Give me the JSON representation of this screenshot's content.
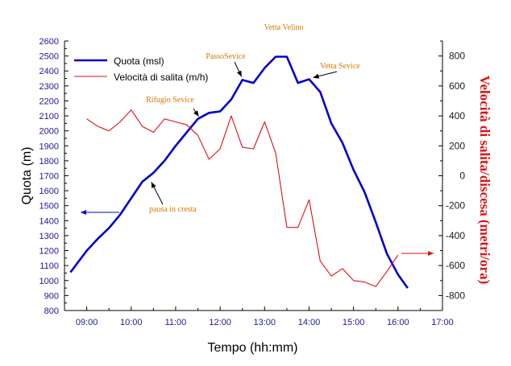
{
  "chart_data": {
    "type": "line",
    "x_axis": {
      "label": "Tempo (hh:mm)",
      "range": [
        "08:30",
        "17:00"
      ],
      "ticks": [
        "09:00",
        "10:00",
        "11:00",
        "12:00",
        "13:00",
        "14:00",
        "15:00",
        "16:00",
        "17:00"
      ]
    },
    "y_left": {
      "label": "Quota (m)",
      "range": [
        800,
        2600
      ],
      "ticks": [
        "800",
        "900",
        "1000",
        "1100",
        "1200",
        "1300",
        "1400",
        "1500",
        "1600",
        "1700",
        "1800",
        "1900",
        "2000",
        "2100",
        "2200",
        "2300",
        "2400",
        "2500",
        "2600"
      ]
    },
    "y_right": {
      "label": "Velocità di salita/discesa (metri/ora)",
      "range": [
        -900,
        900
      ],
      "ticks": [
        "-800",
        "-600",
        "-400",
        "-200",
        "0",
        "200",
        "400",
        "600",
        "800"
      ]
    },
    "series": [
      {
        "name": "Quota (msl)",
        "axis": "left",
        "color": "#0000cc",
        "points": [
          [
            "08:38",
            1055
          ],
          [
            "09:00",
            1200
          ],
          [
            "09:15",
            1280
          ],
          [
            "09:30",
            1350
          ],
          [
            "09:45",
            1440
          ],
          [
            "10:00",
            1550
          ],
          [
            "10:15",
            1660
          ],
          [
            "10:30",
            1720
          ],
          [
            "10:45",
            1800
          ],
          [
            "11:00",
            1900
          ],
          [
            "11:15",
            1990
          ],
          [
            "11:30",
            2080
          ],
          [
            "11:45",
            2120
          ],
          [
            "12:00",
            2130
          ],
          [
            "12:15",
            2210
          ],
          [
            "12:30",
            2340
          ],
          [
            "12:45",
            2320
          ],
          [
            "13:00",
            2420
          ],
          [
            "13:15",
            2495
          ],
          [
            "13:30",
            2495
          ],
          [
            "13:45",
            2320
          ],
          [
            "14:00",
            2345
          ],
          [
            "14:15",
            2260
          ],
          [
            "14:30",
            2050
          ],
          [
            "14:45",
            1920
          ],
          [
            "15:00",
            1740
          ],
          [
            "15:15",
            1590
          ],
          [
            "15:30",
            1390
          ],
          [
            "15:45",
            1180
          ],
          [
            "16:00",
            1040
          ],
          [
            "16:13",
            950
          ]
        ]
      },
      {
        "name": "Velocità di salita (m/h)",
        "axis": "right",
        "color": "#dd1111",
        "points": [
          [
            "09:00",
            380
          ],
          [
            "09:15",
            330
          ],
          [
            "09:30",
            300
          ],
          [
            "09:45",
            360
          ],
          [
            "10:00",
            440
          ],
          [
            "10:15",
            330
          ],
          [
            "10:30",
            290
          ],
          [
            "10:45",
            380
          ],
          [
            "11:00",
            360
          ],
          [
            "11:15",
            340
          ],
          [
            "11:30",
            270
          ],
          [
            "11:45",
            110
          ],
          [
            "12:00",
            180
          ],
          [
            "12:15",
            400
          ],
          [
            "12:30",
            190
          ],
          [
            "12:45",
            180
          ],
          [
            "13:00",
            360
          ],
          [
            "13:15",
            150
          ],
          [
            "13:30",
            -345
          ],
          [
            "13:45",
            -345
          ],
          [
            "14:00",
            -160
          ],
          [
            "14:15",
            -570
          ],
          [
            "14:30",
            -670
          ],
          [
            "14:45",
            -620
          ],
          [
            "15:00",
            -700
          ],
          [
            "15:15",
            -710
          ],
          [
            "15:30",
            -740
          ],
          [
            "15:45",
            -640
          ],
          [
            "16:00",
            -530
          ]
        ]
      }
    ],
    "legend": {
      "placement": "top-left"
    },
    "grid": false,
    "annotations": [
      {
        "text": "PassoSevice",
        "color": "#d47800",
        "at": [
          "12:30",
          2340
        ]
      },
      {
        "text": "Vetta Velino",
        "color": "#d47800",
        "at": [
          "13:22",
          2495
        ]
      },
      {
        "text": "Vetta Sevice",
        "color": "#d47800",
        "at": [
          "14:00",
          2345
        ]
      },
      {
        "text": "Rifugio Sevice",
        "color": "#d47800",
        "at": [
          "11:30",
          2080
        ]
      },
      {
        "text": "pausa in cresta",
        "color": "#d47800",
        "at": [
          "10:25",
          1690
        ]
      }
    ],
    "axis_arrows": [
      {
        "direction": "left",
        "axis": "left",
        "color": "#0000cc"
      },
      {
        "direction": "right",
        "axis": "right",
        "color": "#dd1111"
      }
    ]
  }
}
